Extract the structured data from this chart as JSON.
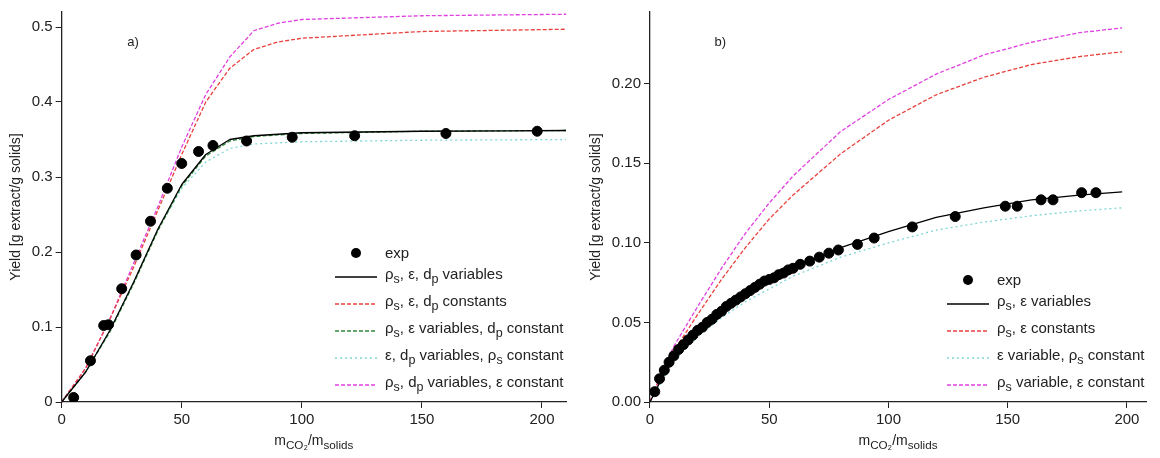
{
  "chart_data": [
    {
      "type": "line",
      "annotations": [
        "a)"
      ],
      "xlabel": "m$_{CO₂}$/m$_{solids}$",
      "ylabel": "Yield [g extract/g solids]",
      "xlim": [
        0,
        210
      ],
      "xticks": [
        0,
        50,
        100,
        150,
        200
      ],
      "ylim": [
        0,
        0.52
      ],
      "yticks": [
        0.0,
        0.1,
        0.2,
        0.3,
        0.4,
        0.5
      ],
      "grid": false,
      "legend": "bottom right",
      "series": [
        {
          "name": "exp",
          "type": "scatter",
          "marker": "circle",
          "color": "#000000",
          "x": [
            5,
            12,
            17.5,
            19.5,
            25,
            31,
            37,
            44,
            50,
            57,
            63,
            77,
            96,
            122,
            160,
            198
          ],
          "values": [
            0.006,
            0.055,
            0.102,
            0.103,
            0.151,
            0.196,
            0.241,
            0.285,
            0.318,
            0.334,
            0.342,
            0.348,
            0.353,
            0.355,
            0.358,
            0.361
          ]
        },
        {
          "name": "ρ$_{s}$, ε, d$_{p}$ variables",
          "type": "line",
          "line_style": "solid",
          "color": "#000000",
          "x": [
            0,
            10,
            20,
            30,
            40,
            50,
            60,
            70,
            80,
            100,
            150,
            210
          ],
          "values": [
            0,
            0.04,
            0.095,
            0.16,
            0.23,
            0.29,
            0.33,
            0.35,
            0.355,
            0.359,
            0.361,
            0.362
          ]
        },
        {
          "name": "ρ$_{s}$, ε, d$_{p}$ constants",
          "type": "line",
          "line_style": "dashed",
          "color": "#e8413c",
          "x": [
            0,
            10,
            20,
            30,
            40,
            50,
            60,
            70,
            80,
            90,
            100,
            150,
            210
          ],
          "values": [
            0,
            0.045,
            0.11,
            0.18,
            0.255,
            0.33,
            0.4,
            0.445,
            0.47,
            0.48,
            0.485,
            0.494,
            0.497
          ]
        },
        {
          "name": "ρ$_{s}$, ε variables, d$_{p}$ constant",
          "type": "line",
          "line_style": "dashed",
          "color": "#2e8b3a",
          "x": [
            0,
            10,
            20,
            30,
            40,
            50,
            60,
            70,
            80,
            100,
            150,
            210
          ],
          "values": [
            0,
            0.04,
            0.093,
            0.158,
            0.228,
            0.288,
            0.328,
            0.348,
            0.354,
            0.358,
            0.361,
            0.362
          ]
        },
        {
          "name": "ε, d$_{p}$ variables, ρ$_{s}$ constant",
          "type": "line",
          "line_style": "dotted",
          "color": "#7fd6d6",
          "x": [
            0,
            10,
            20,
            30,
            40,
            50,
            60,
            70,
            80,
            100,
            150,
            210
          ],
          "values": [
            0,
            0.04,
            0.095,
            0.16,
            0.23,
            0.285,
            0.32,
            0.338,
            0.344,
            0.347,
            0.349,
            0.35
          ]
        },
        {
          "name": "ρ$_{s}$, d$_{p}$ variables, ε constant",
          "type": "line",
          "line_style": "dashed",
          "color": "#e040e0",
          "x": [
            0,
            10,
            20,
            30,
            40,
            50,
            60,
            70,
            80,
            90,
            100,
            150,
            210
          ],
          "values": [
            0,
            0.045,
            0.11,
            0.185,
            0.26,
            0.34,
            0.41,
            0.46,
            0.495,
            0.505,
            0.51,
            0.515,
            0.517
          ]
        }
      ]
    },
    {
      "type": "line",
      "annotations": [
        "b)"
      ],
      "xlabel": "m$_{CO₂}$/m$_{solids}$",
      "ylabel": "Yield [g extract/g solids]",
      "xlim": [
        0,
        208
      ],
      "xticks": [
        0,
        50,
        100,
        150,
        200
      ],
      "ylim": [
        0,
        0.245
      ],
      "yticks": [
        {
          "value": 0,
          "label": "0.00"
        },
        {
          "value": 0.05,
          "label": "0.05"
        },
        {
          "value": 0.1,
          "label": "0.10"
        },
        {
          "value": 0.15,
          "label": "0.15"
        },
        {
          "value": 0.2,
          "label": "0.20"
        }
      ],
      "grid": false,
      "legend": "bottom right",
      "series": [
        {
          "name": "exp",
          "type": "scatter",
          "marker": "circle",
          "color": "#000000",
          "x": [
            2,
            4,
            6,
            8,
            10,
            12,
            14,
            16,
            18,
            20,
            22,
            24,
            26,
            28,
            30,
            32,
            34,
            36,
            38,
            40,
            42,
            44,
            46,
            48,
            50,
            52,
            54,
            56,
            58,
            60,
            63,
            67,
            71,
            75,
            79,
            87,
            94,
            110,
            128,
            149,
            154,
            164,
            169,
            181,
            187
          ],
          "values": [
            0.0065,
            0.0146,
            0.02,
            0.025,
            0.029,
            0.033,
            0.036,
            0.039,
            0.042,
            0.045,
            0.047,
            0.05,
            0.052,
            0.055,
            0.057,
            0.06,
            0.062,
            0.064,
            0.066,
            0.068,
            0.07,
            0.072,
            0.074,
            0.076,
            0.077,
            0.078,
            0.08,
            0.081,
            0.083,
            0.084,
            0.0865,
            0.0885,
            0.091,
            0.0935,
            0.0955,
            0.099,
            0.103,
            0.11,
            0.1165,
            0.123,
            0.123,
            0.127,
            0.127,
            0.1315,
            0.1315
          ]
        },
        {
          "name": "ρ$_{s}$, ε variables",
          "type": "line",
          "line_style": "solid",
          "color": "#000000",
          "x": [
            0,
            5,
            10,
            20,
            30,
            40,
            50,
            60,
            80,
            100,
            120,
            140,
            160,
            180,
            198
          ],
          "values": [
            0,
            0.015,
            0.027,
            0.043,
            0.056,
            0.067,
            0.077,
            0.084,
            0.097,
            0.107,
            0.116,
            0.122,
            0.127,
            0.13,
            0.132
          ]
        },
        {
          "name": "ρ$_{s}$, ε constants",
          "type": "line",
          "line_style": "dashed",
          "color": "#e8413c",
          "x": [
            0,
            5,
            10,
            20,
            30,
            40,
            50,
            60,
            80,
            100,
            120,
            140,
            160,
            180,
            198
          ],
          "values": [
            0,
            0.018,
            0.032,
            0.055,
            0.077,
            0.097,
            0.115,
            0.13,
            0.156,
            0.177,
            0.193,
            0.204,
            0.212,
            0.217,
            0.22
          ]
        },
        {
          "name": "ε variable, ρ$_{s}$ constant",
          "type": "line",
          "line_style": "dotted",
          "color": "#7fd6d6",
          "x": [
            0,
            10,
            20,
            30,
            40,
            50,
            60,
            80,
            100,
            120,
            140,
            160,
            180,
            198
          ],
          "values": [
            0,
            0.026,
            0.041,
            0.053,
            0.063,
            0.071,
            0.079,
            0.091,
            0.1,
            0.108,
            0.113,
            0.117,
            0.12,
            0.122
          ]
        },
        {
          "name": "ρ$_{s}$ variable, ε constant",
          "type": "line",
          "line_style": "dashed",
          "color": "#e040e0",
          "x": [
            0,
            5,
            10,
            20,
            30,
            40,
            50,
            60,
            80,
            100,
            120,
            140,
            160,
            180,
            198
          ],
          "values": [
            0,
            0.019,
            0.035,
            0.06,
            0.084,
            0.106,
            0.125,
            0.142,
            0.17,
            0.19,
            0.206,
            0.218,
            0.226,
            0.232,
            0.235
          ]
        }
      ]
    }
  ]
}
